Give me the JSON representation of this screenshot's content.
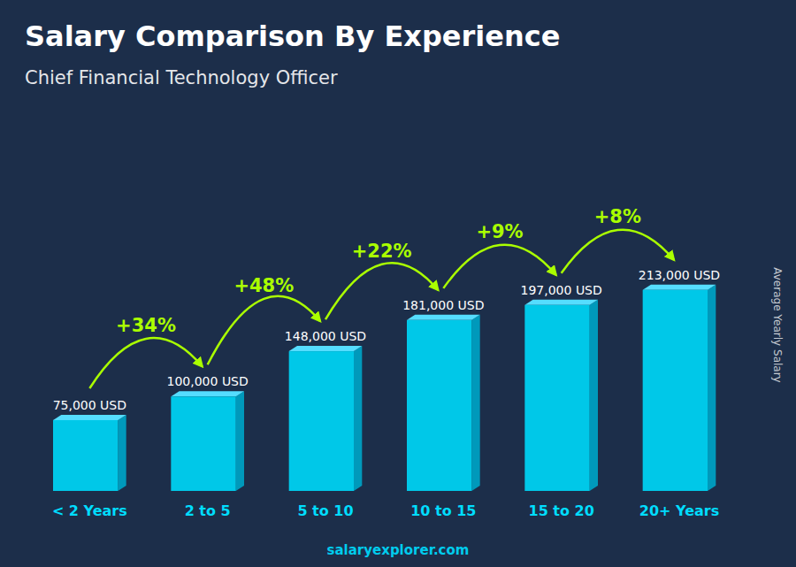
{
  "chart_data": {
    "type": "bar",
    "title": "Salary Comparison By Experience",
    "subtitle": "Chief Financial Technology Officer",
    "ylabel": "Average Yearly Salary",
    "footer": "salaryexplorer.com",
    "categories": [
      "< 2 Years",
      "2 to 5",
      "5 to 10",
      "10 to 15",
      "15 to 20",
      "20+ Years"
    ],
    "values": [
      75000,
      100000,
      148000,
      181000,
      197000,
      213000
    ],
    "value_labels": [
      "75,000 USD",
      "100,000 USD",
      "148,000 USD",
      "181,000 USD",
      "197,000 USD",
      "213,000 USD"
    ],
    "data_labels": true,
    "annotations": [
      "+34%",
      "+48%",
      "+22%",
      "+9%",
      "+8%"
    ],
    "color": "#00C8E8",
    "ylim": [
      0,
      351450
    ],
    "grid": false,
    "tick_labels": "x"
  }
}
